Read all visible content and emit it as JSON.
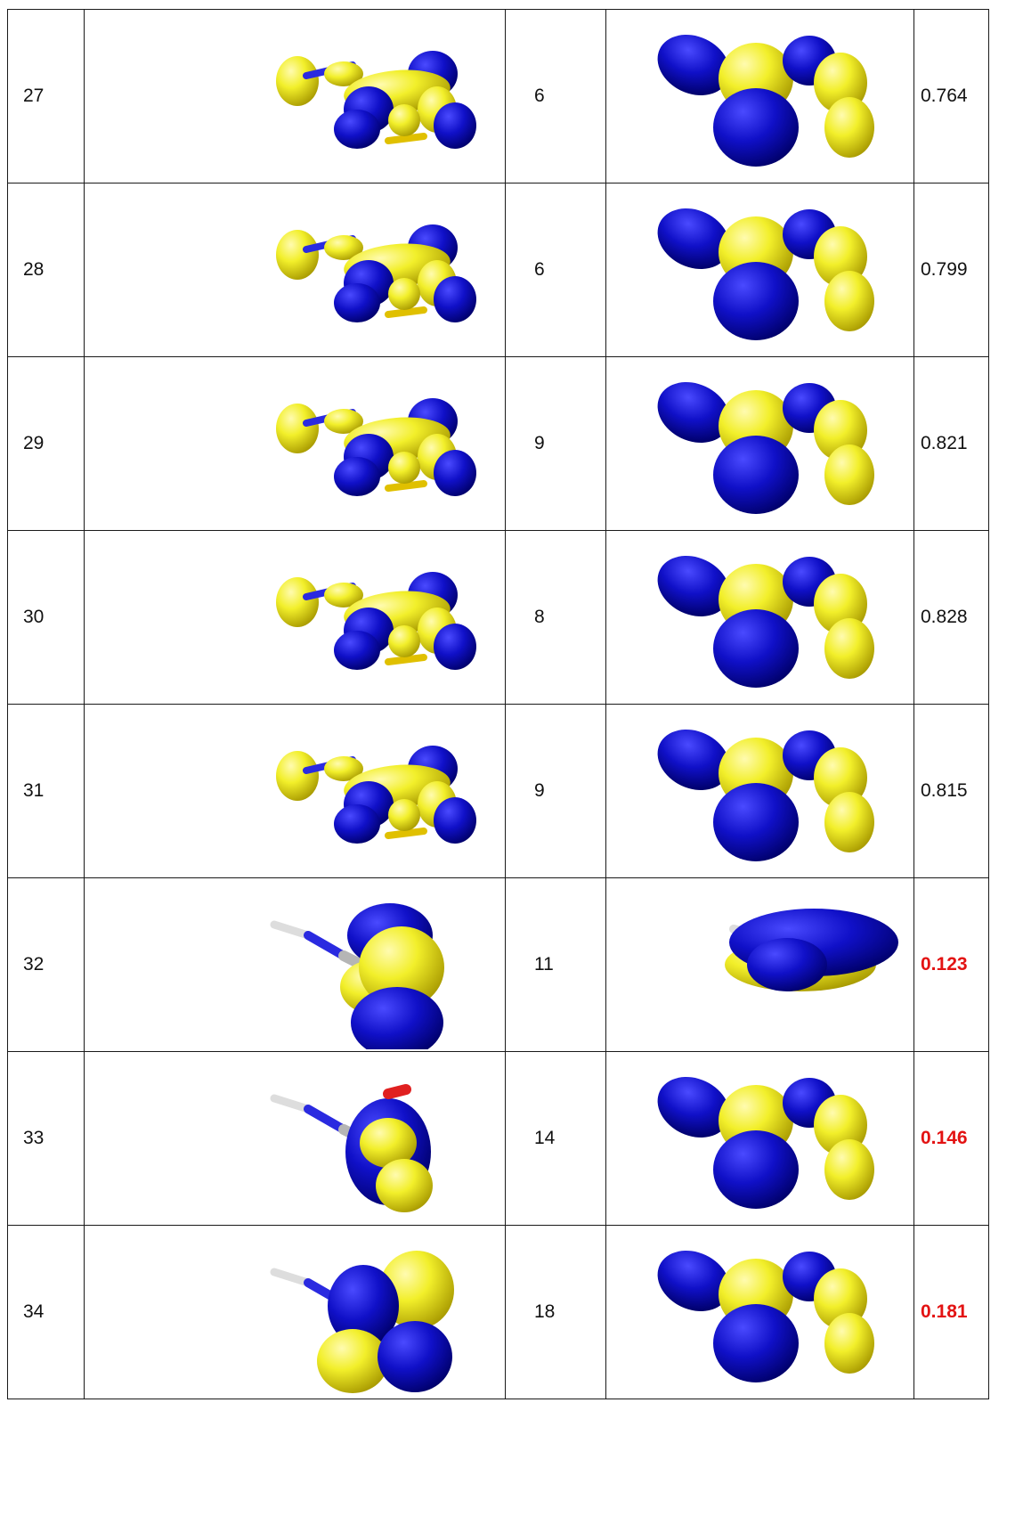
{
  "table": {
    "rows": [
      {
        "id": "27",
        "count": "6",
        "value": "0.764",
        "highlight": false,
        "orbital_a": "delocalized-pi",
        "orbital_b": "pi-lobes"
      },
      {
        "id": "28",
        "count": "6",
        "value": "0.799",
        "highlight": false,
        "orbital_a": "delocalized-pi",
        "orbital_b": "pi-lobes"
      },
      {
        "id": "29",
        "count": "9",
        "value": "0.821",
        "highlight": false,
        "orbital_a": "delocalized-pi",
        "orbital_b": "pi-lobes"
      },
      {
        "id": "30",
        "count": "8",
        "value": "0.828",
        "highlight": false,
        "orbital_a": "delocalized-pi",
        "orbital_b": "pi-lobes"
      },
      {
        "id": "31",
        "count": "9",
        "value": "0.815",
        "highlight": false,
        "orbital_a": "delocalized-pi",
        "orbital_b": "pi-lobes"
      },
      {
        "id": "32",
        "count": "11",
        "value": "0.123",
        "highlight": true,
        "orbital_a": "localized-p",
        "orbital_b": "diffuse-cap"
      },
      {
        "id": "33",
        "count": "14",
        "value": "0.146",
        "highlight": true,
        "orbital_a": "localized-ring",
        "orbital_b": "pi-lobes"
      },
      {
        "id": "34",
        "count": "18",
        "value": "0.181",
        "highlight": true,
        "orbital_a": "localized-d",
        "orbital_b": "pi-lobes"
      }
    ]
  },
  "colors": {
    "lobe_positive": "#f2ef2a",
    "lobe_negative": "#1010c8",
    "highlight_text": "#e31313",
    "bond_gray": "#b5b5b5",
    "nitrogen_blue": "#2a2ae0",
    "oxygen_red": "#e02020"
  }
}
